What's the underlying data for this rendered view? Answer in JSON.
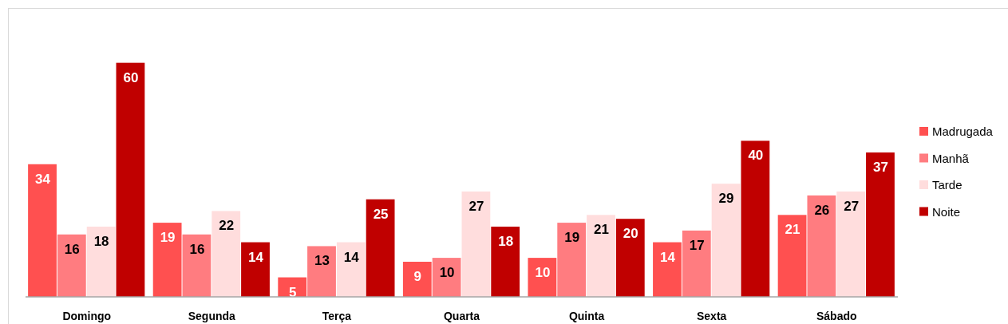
{
  "chart_data": {
    "type": "bar",
    "categories": [
      "Domingo",
      "Segunda",
      "Terça",
      "Quarta",
      "Quinta",
      "Sexta",
      "Sábado"
    ],
    "series": [
      {
        "name": "Madrugada",
        "color": "#ff5050",
        "values": [
          34,
          19,
          5,
          9,
          10,
          14,
          21
        ]
      },
      {
        "name": "Manhã",
        "color": "#ff7c80",
        "values": [
          16,
          16,
          13,
          10,
          19,
          17,
          26
        ]
      },
      {
        "name": "Tarde",
        "color": "#ffdddd",
        "values": [
          18,
          22,
          14,
          27,
          21,
          29,
          27
        ]
      },
      {
        "name": "Noite",
        "color": "#c00000",
        "values": [
          60,
          14,
          25,
          18,
          20,
          40,
          37
        ]
      }
    ],
    "relative": false,
    "data_labels": true,
    "legend": "right"
  }
}
